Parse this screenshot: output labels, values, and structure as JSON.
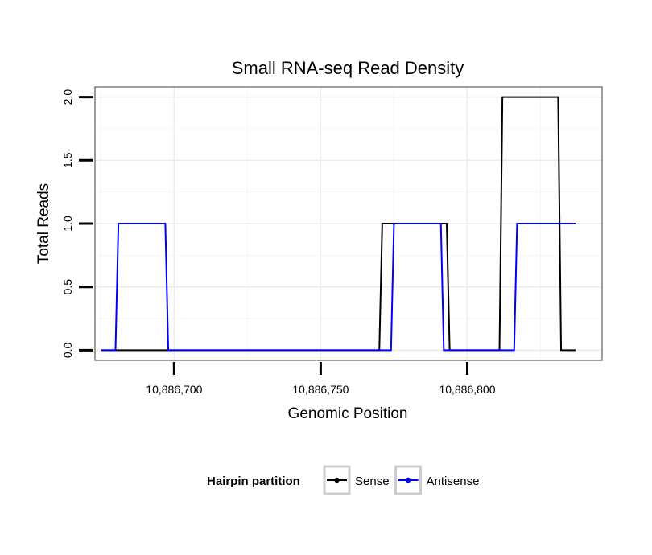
{
  "chart_data": {
    "type": "line",
    "title": "Small RNA-seq Read Density",
    "xlabel": "Genomic Position",
    "ylabel": "Total Reads",
    "xlim": [
      10886673,
      10886846
    ],
    "ylim": [
      -0.08,
      2.08
    ],
    "x_ticks": [
      10886700,
      10886750,
      10886800
    ],
    "x_tick_labels": [
      "10,886,700",
      "10,886,750",
      "10,886,800"
    ],
    "y_ticks": [
      0,
      0.5,
      1,
      1.5,
      2
    ],
    "y_tick_labels": [
      "0.0",
      "0.5",
      "1.0",
      "1.5",
      "2.0"
    ],
    "grid": true,
    "legend": {
      "title": "Hairpin partition",
      "position": "bottom"
    },
    "series": [
      {
        "name": "Sense",
        "color": "#000000",
        "x": [
          10886675,
          10886770,
          10886771,
          10886793,
          10886794,
          10886811,
          10886812,
          10886831,
          10886832,
          10886837
        ],
        "values": [
          0,
          0,
          1,
          1,
          0,
          0,
          2,
          2,
          0,
          0
        ]
      },
      {
        "name": "Antisense",
        "color": "#0000ff",
        "x": [
          10886675,
          10886680,
          10886681,
          10886697,
          10886698,
          10886774,
          10886775,
          10886791,
          10886792,
          10886816,
          10886817,
          10886837
        ],
        "values": [
          0,
          0,
          1,
          1,
          0,
          0,
          1,
          1,
          0,
          0,
          1,
          1
        ]
      }
    ]
  }
}
